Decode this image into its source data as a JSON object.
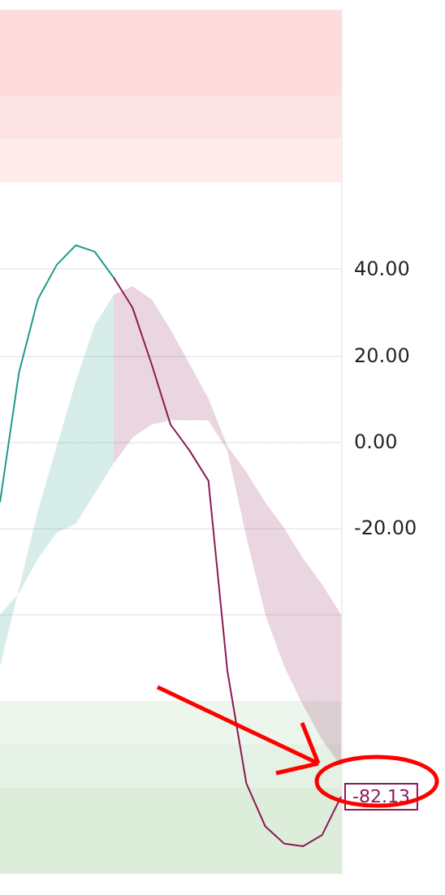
{
  "chart_data": {
    "type": "line",
    "categories": [
      null,
      null,
      null,
      null,
      null,
      null,
      null,
      null,
      null,
      null,
      null,
      null,
      null,
      null,
      null,
      null,
      null,
      null,
      null
    ],
    "series": [
      {
        "colors": [
          "#1e9a8a",
          "#1e9a8a",
          "#1e9a8a",
          "#1e9a8a",
          "#1e9a8a",
          "#1e9a8a",
          "#8b1a55",
          "#8b1a55",
          "#8b1a55",
          "#8b1a55",
          "#8b1a55",
          "#8b1a55",
          "#8b1a55",
          "#8b1a55",
          "#8b1a55",
          "#8b1a55",
          "#8b1a55",
          "#8b1a55",
          "#8b1a55"
        ],
        "values": [
          -14,
          16,
          33,
          41,
          45.5,
          44,
          38,
          31,
          18,
          4,
          -2,
          -9,
          -53,
          -79,
          -89,
          -93,
          -93.6,
          -91,
          -82.13
        ],
        "lower": [
          -40,
          -35,
          -27,
          -21,
          -19,
          -12,
          -5,
          1,
          4,
          5,
          5,
          5,
          -2,
          -22,
          -40,
          -52,
          -61,
          -69,
          -75
        ],
        "upper": [
          -52,
          -34,
          -16,
          -1,
          14,
          27,
          34,
          36,
          33,
          26,
          18,
          10,
          -1,
          -7,
          -14,
          -20,
          -27,
          -33,
          -40
        ]
      }
    ],
    "bands": [
      {
        "axis": "y",
        "from": 80,
        "to": 100,
        "color": "#fddcdb"
      },
      {
        "axis": "y",
        "from": 70,
        "to": 80,
        "color": "#fde4e4"
      },
      {
        "axis": "y",
        "from": 60,
        "to": 70,
        "color": "#fdeceb"
      },
      {
        "axis": "y",
        "from": -70,
        "to": -60,
        "color": "#edf6ed"
      },
      {
        "axis": "y",
        "from": -80,
        "to": -70,
        "color": "#e4f1e4"
      },
      {
        "axis": "y",
        "from": -100,
        "to": -80,
        "color": "#dcedda"
      }
    ],
    "annotations": [
      {
        "text": "-82.13",
        "y": -82.13
      }
    ],
    "ylim": [
      -100,
      100
    ],
    "yticks": [
      {
        "value": 40,
        "label": "40.00"
      },
      {
        "value": 20,
        "label": "20.00"
      },
      {
        "value": 0,
        "label": "0.00"
      },
      {
        "value": -20,
        "label": "-20.00"
      },
      {
        "value": -40,
        "label": null
      }
    ],
    "grid": "y",
    "tick_labels": "y"
  }
}
